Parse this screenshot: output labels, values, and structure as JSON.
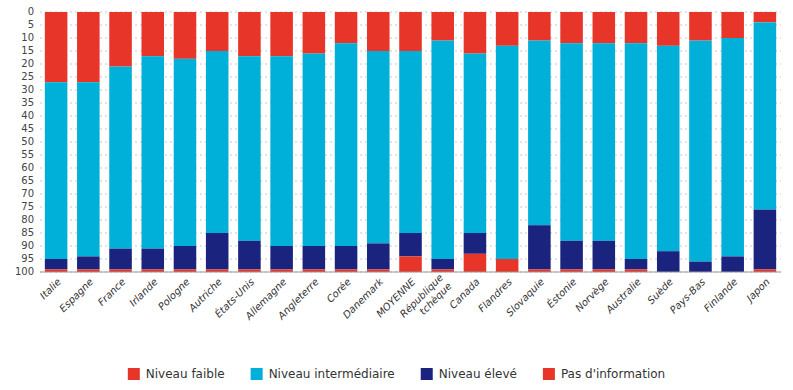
{
  "chart_data": {
    "type": "bar",
    "stacked": true,
    "categories": [
      "Italie",
      "Espagne",
      "France",
      "Irlande",
      "Pologne",
      "Autriche",
      "États-Unis",
      "Allemagne",
      "Angleterre",
      "Corée",
      "Danemark",
      "MOYENNE",
      "République\ntchèque",
      "Canada",
      "Flandres",
      "Slovaquie",
      "Éstonie",
      "Norvège",
      "Australie",
      "Suède",
      "Pays-Bas",
      "Finlande",
      "Japon"
    ],
    "series": [
      {
        "name": "Niveau faible",
        "color": "#e8352a",
        "values": [
          27,
          27,
          21,
          17,
          18,
          15,
          17,
          17,
          16,
          12,
          15,
          15,
          11,
          16,
          13,
          11,
          12,
          12,
          12,
          13,
          11,
          10,
          4
        ]
      },
      {
        "name": "Niveau intermédiaire",
        "color": "#00b0d8",
        "values": [
          68,
          67,
          70,
          74,
          72,
          70,
          71,
          73,
          74,
          78,
          74,
          70,
          84,
          69,
          82,
          71,
          76,
          76,
          83,
          79,
          85,
          84,
          72
        ]
      },
      {
        "name": "Niveau élevé",
        "color": "#1a237e",
        "values": [
          4,
          5,
          8,
          8,
          9,
          14,
          11,
          9,
          9,
          9,
          10,
          9,
          4,
          8,
          0,
          17,
          11,
          11,
          4,
          8,
          4,
          6,
          23
        ]
      },
      {
        "name": "Pas d'information",
        "color": "#e8352a",
        "values": [
          1,
          1,
          1,
          1,
          1,
          1,
          1,
          1,
          1,
          1,
          1,
          6,
          1,
          7,
          5,
          1,
          1,
          1,
          1,
          0,
          0,
          0,
          1
        ]
      }
    ],
    "ylim": [
      100,
      0
    ],
    "yticks": [
      100,
      95,
      90,
      85,
      80,
      75,
      70,
      65,
      60,
      55,
      50,
      45,
      40,
      35,
      30,
      25,
      20,
      15,
      10,
      5,
      0
    ],
    "grid": true,
    "legend": "bottom"
  }
}
